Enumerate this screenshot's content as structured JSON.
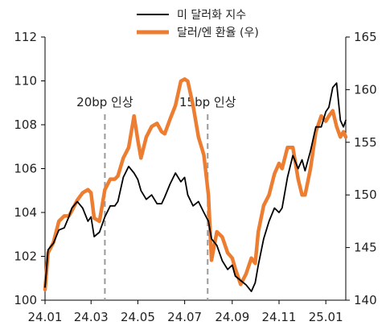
{
  "chart_data": {
    "type": "line",
    "title": "",
    "legend": {
      "placement": "top-center"
    },
    "series": [
      {
        "name": "미 달러화 지수",
        "axis": "left",
        "color": "#000000",
        "points": [
          [
            "24.01",
            100.6
          ],
          [
            "24.01.05",
            102.3
          ],
          [
            "24.01.12",
            102.6
          ],
          [
            "24.01.19",
            103.2
          ],
          [
            "24.01.26",
            103.3
          ],
          [
            "24.02",
            103.8
          ],
          [
            "24.02.05",
            104.2
          ],
          [
            "24.02.12",
            104.5
          ],
          [
            "24.02.19",
            104.2
          ],
          [
            "24.02.26",
            103.6
          ],
          [
            "24.03",
            103.8
          ],
          [
            "24.03.05",
            102.9
          ],
          [
            "24.03.12",
            103.1
          ],
          [
            "24.03.19",
            103.8
          ],
          [
            "24.03.26",
            104.3
          ],
          [
            "24.04",
            104.3
          ],
          [
            "24.04.05",
            104.5
          ],
          [
            "24.04.12",
            105.6
          ],
          [
            "24.04.19",
            106.1
          ],
          [
            "24.04.26",
            105.8
          ],
          [
            "24.05",
            105.5
          ],
          [
            "24.05.05",
            105.0
          ],
          [
            "24.05.12",
            104.6
          ],
          [
            "24.05.19",
            104.8
          ],
          [
            "24.05.26",
            104.4
          ],
          [
            "24.06",
            104.4
          ],
          [
            "24.06.05",
            104.7
          ],
          [
            "24.06.12",
            105.3
          ],
          [
            "24.06.19",
            105.8
          ],
          [
            "24.06.26",
            105.4
          ],
          [
            "24.07",
            105.6
          ],
          [
            "24.07.05",
            104.8
          ],
          [
            "24.07.12",
            104.3
          ],
          [
            "24.07.19",
            104.5
          ],
          [
            "24.07.26",
            104.0
          ],
          [
            "24.08",
            103.6
          ],
          [
            "24.08.05",
            102.8
          ],
          [
            "24.08.12",
            102.5
          ],
          [
            "24.08.19",
            101.8
          ],
          [
            "24.08.26",
            101.4
          ],
          [
            "24.09",
            101.6
          ],
          [
            "24.09.05",
            101.1
          ],
          [
            "24.09.12",
            100.9
          ],
          [
            "24.09.19",
            100.7
          ],
          [
            "24.09.26",
            100.4
          ],
          [
            "24.10",
            100.8
          ],
          [
            "24.10.05",
            101.6
          ],
          [
            "24.10.12",
            102.8
          ],
          [
            "24.10.19",
            103.6
          ],
          [
            "24.10.26",
            104.2
          ],
          [
            "24.11",
            104.0
          ],
          [
            "24.11.05",
            104.2
          ],
          [
            "24.11.12",
            105.6
          ],
          [
            "24.11.19",
            106.6
          ],
          [
            "24.11.26",
            106.0
          ],
          [
            "24.12",
            106.4
          ],
          [
            "24.12.05",
            105.9
          ],
          [
            "24.12.12",
            106.8
          ],
          [
            "24.12.19",
            107.9
          ],
          [
            "24.12.26",
            107.9
          ],
          [
            "25.01",
            108.6
          ],
          [
            "25.01.05",
            108.8
          ],
          [
            "25.01.10",
            109.7
          ],
          [
            "25.01.15",
            109.9
          ],
          [
            "25.01.20",
            108.2
          ],
          [
            "25.01.24",
            107.9
          ],
          [
            "25.01.27",
            108.2
          ]
        ]
      },
      {
        "name": "달러/엔 환율 (우)",
        "axis": "right",
        "color": "#ED7D31",
        "points": [
          [
            "24.01",
            141.0
          ],
          [
            "24.01.05",
            144.5
          ],
          [
            "24.01.12",
            145.5
          ],
          [
            "24.01.19",
            147.5
          ],
          [
            "24.01.26",
            148.0
          ],
          [
            "24.02",
            148.0
          ],
          [
            "24.02.05",
            148.5
          ],
          [
            "24.02.12",
            149.5
          ],
          [
            "24.02.19",
            150.2
          ],
          [
            "24.02.26",
            150.5
          ],
          [
            "24.03",
            150.2
          ],
          [
            "24.03.05",
            147.8
          ],
          [
            "24.03.12",
            147.5
          ],
          [
            "24.03.19",
            150.5
          ],
          [
            "24.03.26",
            151.5
          ],
          [
            "24.04",
            151.5
          ],
          [
            "24.04.05",
            151.8
          ],
          [
            "24.04.12",
            153.5
          ],
          [
            "24.04.19",
            154.5
          ],
          [
            "24.04.26",
            157.5
          ],
          [
            "24.05",
            155.2
          ],
          [
            "24.05.05",
            153.5
          ],
          [
            "24.05.12",
            155.5
          ],
          [
            "24.05.19",
            156.5
          ],
          [
            "24.05.26",
            156.8
          ],
          [
            "24.06",
            156.0
          ],
          [
            "24.06.05",
            155.8
          ],
          [
            "24.06.12",
            157.2
          ],
          [
            "24.06.19",
            158.5
          ],
          [
            "24.06.26",
            160.8
          ],
          [
            "24.07",
            161.0
          ],
          [
            "24.07.05",
            160.8
          ],
          [
            "24.07.12",
            158.5
          ],
          [
            "24.07.19",
            155.5
          ],
          [
            "24.07.26",
            153.8
          ],
          [
            "24.08",
            150.0
          ],
          [
            "24.08.05",
            143.8
          ],
          [
            "24.08.12",
            146.5
          ],
          [
            "24.08.19",
            146.0
          ],
          [
            "24.08.26",
            144.5
          ],
          [
            "24.09",
            144.0
          ],
          [
            "24.09.05",
            143.0
          ],
          [
            "24.09.12",
            141.5
          ],
          [
            "24.09.19",
            142.5
          ],
          [
            "24.09.26",
            144.0
          ],
          [
            "24.10",
            143.5
          ],
          [
            "24.10.05",
            146.5
          ],
          [
            "24.10.12",
            149.0
          ],
          [
            "24.10.19",
            150.0
          ],
          [
            "24.10.26",
            152.0
          ],
          [
            "24.11",
            153.0
          ],
          [
            "24.11.05",
            152.5
          ],
          [
            "24.11.12",
            154.5
          ],
          [
            "24.11.19",
            154.5
          ],
          [
            "24.11.26",
            151.5
          ],
          [
            "24.12",
            150.0
          ],
          [
            "24.12.05",
            150.0
          ],
          [
            "24.12.12",
            152.5
          ],
          [
            "24.12.19",
            156.0
          ],
          [
            "24.12.26",
            157.5
          ],
          [
            "25.01",
            157.0
          ],
          [
            "25.01.05",
            157.5
          ],
          [
            "25.01.10",
            158.0
          ],
          [
            "25.01.15",
            156.5
          ],
          [
            "25.01.20",
            155.5
          ],
          [
            "25.01.24",
            156.0
          ],
          [
            "25.01.27",
            155.5
          ]
        ]
      }
    ],
    "x_axis": {
      "tick_labels": [
        "24.01",
        "24.03",
        "24.05",
        "24.07",
        "24.09",
        "24.11",
        "25.01"
      ],
      "range": [
        "24.01",
        "25.01.27"
      ]
    },
    "y_axis_left": {
      "range": [
        100,
        112
      ],
      "tick_labels": [
        "100",
        "102",
        "104",
        "106",
        "108",
        "110",
        "112"
      ]
    },
    "y_axis_right": {
      "range": [
        140,
        165
      ],
      "tick_labels": [
        "140",
        "145",
        "150",
        "155",
        "160",
        "165"
      ]
    },
    "grid": false,
    "annotations": [
      {
        "text": "20bp 인상",
        "x": "24.03.19"
      },
      {
        "text": "15bp 인상",
        "x": "24.07.31"
      }
    ]
  }
}
